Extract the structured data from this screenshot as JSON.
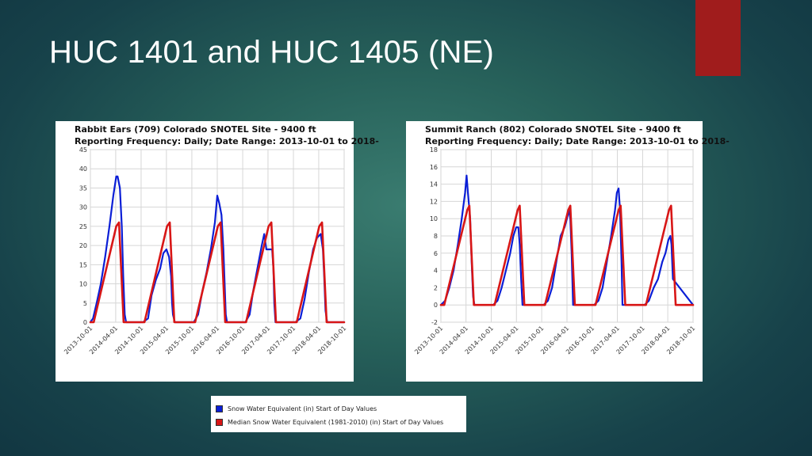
{
  "slide": {
    "title": "HUC 1401 and HUC 1405 (NE)"
  },
  "colors": {
    "swe": "#0a1ed6",
    "median": "#d81616",
    "accent_bar": "#a01c1c"
  },
  "legend": {
    "items": [
      {
        "label": "Snow Water Equivalent (in) Start of Day Values",
        "color": "#0a1ed6"
      },
      {
        "label": "Median Snow Water Equivalent (1981-2010) (in) Start of Day Values",
        "color": "#d81616"
      }
    ]
  },
  "chart_data": [
    {
      "type": "line",
      "title": "Rabbit Ears (709) Colorado SNOTEL Site - 9400 ft",
      "subtitle": "Reporting Frequency: Daily; Date Range: 2013-10-01 to 2018-",
      "ylim": [
        0,
        45
      ],
      "yticks": [
        0,
        5,
        10,
        15,
        20,
        25,
        30,
        35,
        40,
        45
      ],
      "xlim": [
        "2013-10-01",
        "2018-10-01"
      ],
      "xticks": [
        "2013-10-01",
        "2014-04-01",
        "2014-10-01",
        "2015-04-01",
        "2015-10-01",
        "2016-04-01",
        "2016-10-01",
        "2017-04-01",
        "2017-10-01",
        "2018-04-01",
        "2018-10-01"
      ],
      "grid": true,
      "series": [
        {
          "color": "#0a1ed6",
          "x": [
            "2013-10-01",
            "2013-10-20",
            "2013-11-15",
            "2013-12-15",
            "2014-01-15",
            "2014-02-15",
            "2014-03-15",
            "2014-04-05",
            "2014-04-15",
            "2014-05-01",
            "2014-05-15",
            "2014-05-25",
            "2014-06-05",
            "2014-06-15",
            "2014-10-15",
            "2014-11-20",
            "2014-12-15",
            "2015-01-15",
            "2015-02-15",
            "2015-03-10",
            "2015-04-01",
            "2015-04-20",
            "2015-05-05",
            "2015-05-12",
            "2015-05-18",
            "2015-06-01",
            "2015-10-15",
            "2015-11-15",
            "2015-12-15",
            "2016-01-15",
            "2016-02-15",
            "2016-03-15",
            "2016-04-01",
            "2016-04-15",
            "2016-05-01",
            "2016-05-15",
            "2016-06-01",
            "2016-06-10",
            "2016-10-20",
            "2016-11-20",
            "2016-12-15",
            "2017-01-15",
            "2017-02-15",
            "2017-03-05",
            "2017-03-20",
            "2017-04-10",
            "2017-05-01",
            "2017-05-10",
            "2017-05-16",
            "2017-05-25",
            "2017-10-15",
            "2017-11-20",
            "2017-12-20",
            "2018-01-20",
            "2018-02-20",
            "2018-03-20",
            "2018-04-15",
            "2018-05-01",
            "2018-05-10",
            "2018-05-20",
            "2018-06-01",
            "2018-10-01"
          ],
          "y": [
            0,
            1,
            5,
            10,
            17,
            25,
            33,
            38,
            38,
            35,
            25,
            12,
            2,
            0,
            0,
            1,
            7,
            11,
            14,
            18,
            19,
            17,
            12,
            5,
            2,
            0,
            0,
            2,
            8,
            13,
            19,
            26,
            33,
            31,
            28,
            19,
            2,
            0,
            0,
            2,
            8,
            14,
            20,
            23,
            19,
            19,
            19,
            14,
            5,
            0,
            0,
            1,
            6,
            13,
            19,
            22,
            23,
            19,
            12,
            3,
            0,
            0
          ]
        },
        {
          "color": "#d81616",
          "x": [
            "2013-10-01",
            "2013-10-25",
            "2014-04-05",
            "2014-04-25",
            "2014-05-28",
            "2014-10-25",
            "2015-04-05",
            "2015-04-25",
            "2015-05-28",
            "2015-10-25",
            "2016-04-05",
            "2016-04-25",
            "2016-05-28",
            "2016-10-25",
            "2017-04-05",
            "2017-04-25",
            "2017-05-28",
            "2017-10-25",
            "2018-04-05",
            "2018-04-25",
            "2018-05-28",
            "2018-10-01"
          ],
          "y": [
            0,
            0,
            25,
            26,
            0,
            0,
            25,
            26,
            0,
            0,
            25,
            26,
            0,
            0,
            25,
            26,
            0,
            0,
            25,
            26,
            0,
            0
          ]
        }
      ]
    },
    {
      "type": "line",
      "title": "Summit Ranch (802) Colorado SNOTEL Site - 9400 ft",
      "subtitle": "Reporting Frequency: Daily; Date Range: 2013-10-01 to 2018-",
      "ylim": [
        -2,
        18
      ],
      "yticks": [
        -2,
        0,
        2,
        4,
        6,
        8,
        10,
        12,
        14,
        16,
        18
      ],
      "xlim": [
        "2013-10-01",
        "2018-10-01"
      ],
      "xticks": [
        "2013-10-01",
        "2014-04-01",
        "2014-10-01",
        "2015-04-01",
        "2015-10-01",
        "2016-04-01",
        "2016-10-01",
        "2017-04-01",
        "2017-10-01",
        "2018-04-01",
        "2018-10-01"
      ],
      "grid": true,
      "series": [
        {
          "color": "#0a1ed6",
          "x": [
            "2013-10-01",
            "2013-11-01",
            "2013-12-01",
            "2014-01-01",
            "2014-02-01",
            "2014-03-01",
            "2014-03-25",
            "2014-04-05",
            "2014-04-15",
            "2014-05-01",
            "2014-05-12",
            "2014-05-22",
            "2014-06-01",
            "2014-10-15",
            "2014-11-15",
            "2014-12-15",
            "2015-01-15",
            "2015-02-15",
            "2015-03-10",
            "2015-03-30",
            "2015-04-15",
            "2015-04-25",
            "2015-05-05",
            "2015-05-15",
            "2015-10-15",
            "2015-11-15",
            "2015-12-15",
            "2016-01-15",
            "2016-02-15",
            "2016-03-15",
            "2016-04-01",
            "2016-04-15",
            "2016-04-25",
            "2016-05-05",
            "2016-05-15",
            "2016-10-15",
            "2016-11-15",
            "2016-12-15",
            "2017-01-15",
            "2017-02-15",
            "2017-03-15",
            "2017-03-28",
            "2017-04-10",
            "2017-04-20",
            "2017-05-01",
            "2017-05-08",
            "2017-10-15",
            "2017-11-15",
            "2017-12-20",
            "2018-01-20",
            "2018-02-20",
            "2018-03-15",
            "2018-04-05",
            "2018-04-20",
            "2018-04-28",
            "2018-05-08",
            "2018-10-01"
          ],
          "y": [
            0,
            0.5,
            2,
            4,
            7,
            10,
            13,
            15,
            13,
            10,
            5,
            1,
            0,
            0,
            0.5,
            2,
            4,
            6,
            8,
            9,
            9,
            7,
            3,
            0,
            0,
            0.5,
            2,
            5,
            8,
            9,
            10,
            11,
            10,
            6,
            0,
            0,
            0.5,
            2,
            5,
            8,
            11,
            13,
            13.5,
            11,
            5,
            0,
            0,
            0.5,
            2,
            3,
            5,
            6,
            7.5,
            8,
            7,
            3,
            0
          ]
        },
        {
          "color": "#d81616",
          "x": [
            "2013-10-01",
            "2013-10-25",
            "2014-04-10",
            "2014-04-25",
            "2014-05-28",
            "2014-10-25",
            "2015-04-10",
            "2015-04-25",
            "2015-05-28",
            "2015-10-25",
            "2016-04-10",
            "2016-04-25",
            "2016-05-28",
            "2016-10-25",
            "2017-04-10",
            "2017-04-25",
            "2017-05-28",
            "2017-10-25",
            "2018-04-10",
            "2018-04-25",
            "2018-05-28",
            "2018-10-01"
          ],
          "y": [
            0,
            0,
            11,
            11.5,
            0,
            0,
            11,
            11.5,
            0,
            0,
            11,
            11.5,
            0,
            0,
            11,
            11.5,
            0,
            0,
            11,
            11.5,
            0,
            0
          ]
        }
      ]
    }
  ]
}
